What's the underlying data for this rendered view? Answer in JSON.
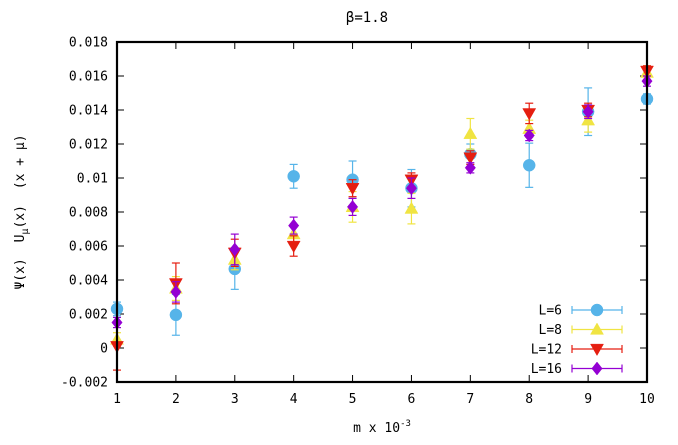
{
  "chart_data": {
    "type": "scatter",
    "title": "β=1.8",
    "xlabel_base": "m x 10",
    "xlabel_exp": "-3",
    "ylabel_parts": [
      "Ψ(x)",
      "U",
      "μ",
      "(x)",
      "(x + μ)"
    ],
    "xlim": [
      1,
      10
    ],
    "ylim": [
      -0.002,
      0.018
    ],
    "xticks": [
      1,
      2,
      3,
      4,
      5,
      6,
      7,
      8,
      9,
      10
    ],
    "xtick_labels": [
      "1",
      "2",
      "3",
      "4",
      "5",
      "6",
      "7",
      "8",
      "9",
      "10"
    ],
    "yticks": [
      -0.002,
      0,
      0.002,
      0.004,
      0.006,
      0.008,
      0.01,
      0.012,
      0.014,
      0.016,
      0.018
    ],
    "ytick_labels": [
      "-0.002",
      "0",
      "0.002",
      "0.004",
      "0.006",
      "0.008",
      "0.01",
      "0.012",
      "0.014",
      "0.016",
      "0.018"
    ],
    "grid": false,
    "legend_position": "bottom-right",
    "series": [
      {
        "name": "L=6",
        "color": "#56b4e9",
        "marker": "circle",
        "x": [
          1,
          2,
          3,
          4,
          5,
          6,
          7,
          8,
          9,
          10
        ],
        "y": [
          0.0023,
          0.00195,
          0.00465,
          0.0101,
          0.0099,
          0.0094,
          0.0114,
          0.01075,
          0.0139,
          0.01465
        ],
        "err": [
          0.0004,
          0.0012,
          0.0012,
          0.0007,
          0.0011,
          0.0011,
          0.0006,
          0.0013,
          0.0014,
          0.0003
        ]
      },
      {
        "name": "L=8",
        "color": "#f0e442",
        "marker": "triangle-up",
        "x": [
          1,
          2,
          3,
          4,
          5,
          6,
          7,
          8,
          9,
          10
        ],
        "y": [
          0.0005,
          0.0035,
          0.0052,
          0.0067,
          0.0083,
          0.0082,
          0.0126,
          0.0129,
          0.0134,
          0.0162
        ],
        "err": [
          0.0004,
          0.0007,
          0.0006,
          0.0005,
          0.0009,
          0.0009,
          0.0009,
          0.0005,
          0.0007,
          0.0004
        ]
      },
      {
        "name": "L=12",
        "color": "#e51e10",
        "marker": "triangle-down",
        "x": [
          1,
          2,
          3,
          4,
          5,
          6,
          7,
          8,
          9,
          10
        ],
        "y": [
          0.0001,
          0.0038,
          0.0056,
          0.006,
          0.0094,
          0.0099,
          0.0112,
          0.0138,
          0.014,
          0.0163
        ],
        "err": [
          0.0014,
          0.0012,
          0.0008,
          0.0006,
          0.0005,
          0.0004,
          0.0004,
          0.0006,
          0.0004,
          0.0003
        ]
      },
      {
        "name": "L=16",
        "color": "#9400d3",
        "marker": "diamond",
        "x": [
          1,
          2,
          3,
          4,
          5,
          6,
          7,
          8,
          9,
          10
        ],
        "y": [
          0.0015,
          0.0033,
          0.0058,
          0.0072,
          0.0083,
          0.0094,
          0.0106,
          0.0125,
          0.0139,
          0.0157
        ],
        "err": [
          0.0003,
          0.0006,
          0.0009,
          0.0005,
          0.0005,
          0.0006,
          0.0003,
          0.0003,
          0.0004,
          0.0003
        ]
      }
    ]
  }
}
